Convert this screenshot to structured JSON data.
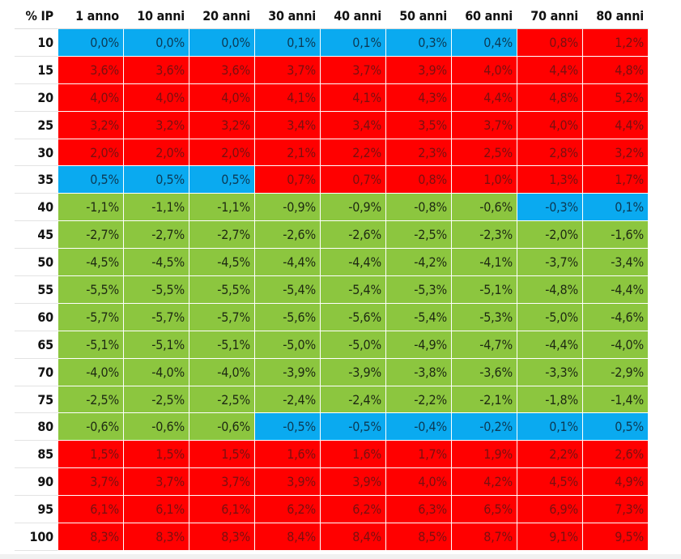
{
  "chart_data": {
    "type": "table",
    "corner_label": "% IP",
    "columns": [
      "1 anno",
      "10 anni",
      "20 anni",
      "30 anni",
      "40 anni",
      "50 anni",
      "60 anni",
      "70 anni",
      "80 anni"
    ],
    "rows": [
      {
        "label": "10",
        "values": [
          "0,0%",
          "0,0%",
          "0,0%",
          "0,1%",
          "0,1%",
          "0,3%",
          "0,4%",
          "0,8%",
          "1,2%"
        ],
        "classes": [
          "low",
          "low",
          "low",
          "low",
          "low",
          "low",
          "low",
          "pos",
          "pos"
        ]
      },
      {
        "label": "15",
        "values": [
          "3,6%",
          "3,6%",
          "3,6%",
          "3,7%",
          "3,7%",
          "3,9%",
          "4,0%",
          "4,4%",
          "4,8%"
        ],
        "classes": [
          "pos",
          "pos",
          "pos",
          "pos",
          "pos",
          "pos",
          "pos",
          "pos",
          "pos"
        ]
      },
      {
        "label": "20",
        "values": [
          "4,0%",
          "4,0%",
          "4,0%",
          "4,1%",
          "4,1%",
          "4,3%",
          "4,4%",
          "4,8%",
          "5,2%"
        ],
        "classes": [
          "pos",
          "pos",
          "pos",
          "pos",
          "pos",
          "pos",
          "pos",
          "pos",
          "pos"
        ]
      },
      {
        "label": "25",
        "values": [
          "3,2%",
          "3,2%",
          "3,2%",
          "3,4%",
          "3,4%",
          "3,5%",
          "3,7%",
          "4,0%",
          "4,4%"
        ],
        "classes": [
          "pos",
          "pos",
          "pos",
          "pos",
          "pos",
          "pos",
          "pos",
          "pos",
          "pos"
        ]
      },
      {
        "label": "30",
        "values": [
          "2,0%",
          "2,0%",
          "2,0%",
          "2,1%",
          "2,2%",
          "2,3%",
          "2,5%",
          "2,8%",
          "3,2%"
        ],
        "classes": [
          "pos",
          "pos",
          "pos",
          "pos",
          "pos",
          "pos",
          "pos",
          "pos",
          "pos"
        ]
      },
      {
        "label": "35",
        "values": [
          "0,5%",
          "0,5%",
          "0,5%",
          "0,7%",
          "0,7%",
          "0,8%",
          "1,0%",
          "1,3%",
          "1,7%"
        ],
        "classes": [
          "low",
          "low",
          "low",
          "pos",
          "pos",
          "pos",
          "pos",
          "pos",
          "pos"
        ]
      },
      {
        "label": "40",
        "values": [
          "-1,1%",
          "-1,1%",
          "-1,1%",
          "-0,9%",
          "-0,9%",
          "-0,8%",
          "-0,6%",
          "-0,3%",
          "0,1%"
        ],
        "classes": [
          "neg",
          "neg",
          "neg",
          "neg",
          "neg",
          "neg",
          "neg",
          "low",
          "low"
        ]
      },
      {
        "label": "45",
        "values": [
          "-2,7%",
          "-2,7%",
          "-2,7%",
          "-2,6%",
          "-2,6%",
          "-2,5%",
          "-2,3%",
          "-2,0%",
          "-1,6%"
        ],
        "classes": [
          "neg",
          "neg",
          "neg",
          "neg",
          "neg",
          "neg",
          "neg",
          "neg",
          "neg"
        ]
      },
      {
        "label": "50",
        "values": [
          "-4,5%",
          "-4,5%",
          "-4,5%",
          "-4,4%",
          "-4,4%",
          "-4,2%",
          "-4,1%",
          "-3,7%",
          "-3,4%"
        ],
        "classes": [
          "neg",
          "neg",
          "neg",
          "neg",
          "neg",
          "neg",
          "neg",
          "neg",
          "neg"
        ]
      },
      {
        "label": "55",
        "values": [
          "-5,5%",
          "-5,5%",
          "-5,5%",
          "-5,4%",
          "-5,4%",
          "-5,3%",
          "-5,1%",
          "-4,8%",
          "-4,4%"
        ],
        "classes": [
          "neg",
          "neg",
          "neg",
          "neg",
          "neg",
          "neg",
          "neg",
          "neg",
          "neg"
        ]
      },
      {
        "label": "60",
        "values": [
          "-5,7%",
          "-5,7%",
          "-5,7%",
          "-5,6%",
          "-5,6%",
          "-5,4%",
          "-5,3%",
          "-5,0%",
          "-4,6%"
        ],
        "classes": [
          "neg",
          "neg",
          "neg",
          "neg",
          "neg",
          "neg",
          "neg",
          "neg",
          "neg"
        ]
      },
      {
        "label": "65",
        "values": [
          "-5,1%",
          "-5,1%",
          "-5,1%",
          "-5,0%",
          "-5,0%",
          "-4,9%",
          "-4,7%",
          "-4,4%",
          "-4,0%"
        ],
        "classes": [
          "neg",
          "neg",
          "neg",
          "neg",
          "neg",
          "neg",
          "neg",
          "neg",
          "neg"
        ]
      },
      {
        "label": "70",
        "values": [
          "-4,0%",
          "-4,0%",
          "-4,0%",
          "-3,9%",
          "-3,9%",
          "-3,8%",
          "-3,6%",
          "-3,3%",
          "-2,9%"
        ],
        "classes": [
          "neg",
          "neg",
          "neg",
          "neg",
          "neg",
          "neg",
          "neg",
          "neg",
          "neg"
        ]
      },
      {
        "label": "75",
        "values": [
          "-2,5%",
          "-2,5%",
          "-2,5%",
          "-2,4%",
          "-2,4%",
          "-2,2%",
          "-2,1%",
          "-1,8%",
          "-1,4%"
        ],
        "classes": [
          "neg",
          "neg",
          "neg",
          "neg",
          "neg",
          "neg",
          "neg",
          "neg",
          "neg"
        ]
      },
      {
        "label": "80",
        "values": [
          "-0,6%",
          "-0,6%",
          "-0,6%",
          "-0,5%",
          "-0,5%",
          "-0,4%",
          "-0,2%",
          "0,1%",
          "0,5%"
        ],
        "classes": [
          "neg",
          "neg",
          "neg",
          "low",
          "low",
          "low",
          "low",
          "low",
          "low"
        ]
      },
      {
        "label": "85",
        "values": [
          "1,5%",
          "1,5%",
          "1,5%",
          "1,6%",
          "1,6%",
          "1,7%",
          "1,9%",
          "2,2%",
          "2,6%"
        ],
        "classes": [
          "pos",
          "pos",
          "pos",
          "pos",
          "pos",
          "pos",
          "pos",
          "pos",
          "pos"
        ]
      },
      {
        "label": "90",
        "values": [
          "3,7%",
          "3,7%",
          "3,7%",
          "3,9%",
          "3,9%",
          "4,0%",
          "4,2%",
          "4,5%",
          "4,9%"
        ],
        "classes": [
          "pos",
          "pos",
          "pos",
          "pos",
          "pos",
          "pos",
          "pos",
          "pos",
          "pos"
        ]
      },
      {
        "label": "95",
        "values": [
          "6,1%",
          "6,1%",
          "6,1%",
          "6,2%",
          "6,2%",
          "6,3%",
          "6,5%",
          "6,9%",
          "7,3%"
        ],
        "classes": [
          "pos",
          "pos",
          "pos",
          "pos",
          "pos",
          "pos",
          "pos",
          "pos",
          "pos"
        ]
      },
      {
        "label": "100",
        "values": [
          "8,3%",
          "8,3%",
          "8,3%",
          "8,4%",
          "8,4%",
          "8,5%",
          "8,7%",
          "9,1%",
          "9,5%"
        ],
        "classes": [
          "pos",
          "pos",
          "pos",
          "pos",
          "pos",
          "pos",
          "pos",
          "pos",
          "pos"
        ]
      }
    ],
    "colors": {
      "positive": "#ff0000",
      "negative": "#8cc63f",
      "near_zero": "#0aaaf0"
    }
  }
}
